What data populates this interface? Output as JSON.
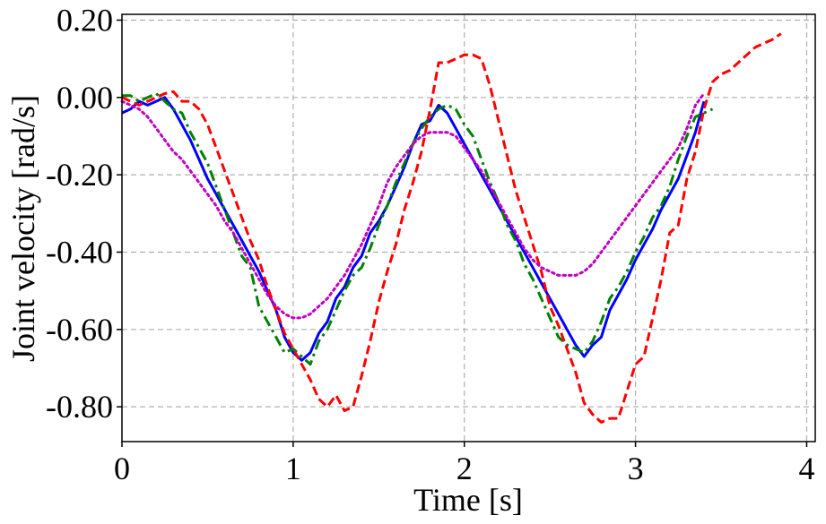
{
  "chart_data": {
    "type": "line",
    "title": "",
    "xlabel": "Time [s]",
    "ylabel": "Joint velocity [rad/s]",
    "xlim": [
      0,
      4.05
    ],
    "ylim": [
      -0.89,
      0.215
    ],
    "xticks": [
      0,
      1,
      2,
      3,
      4
    ],
    "xtick_labels": [
      "0",
      "1",
      "2",
      "3",
      "4"
    ],
    "yticks": [
      0.2,
      0.0,
      -0.2,
      -0.4,
      -0.6,
      -0.8
    ],
    "ytick_labels": [
      "0.20",
      "0.00",
      "-0.20",
      "-0.40",
      "-0.60",
      "-0.80"
    ],
    "grid": true,
    "series": [
      {
        "color": "#0000ff",
        "style": "solid",
        "x": [
          0,
          0.05,
          0.1,
          0.15,
          0.2,
          0.25,
          0.3,
          0.35,
          0.4,
          0.45,
          0.5,
          0.55,
          0.6,
          0.65,
          0.7,
          0.75,
          0.8,
          0.85,
          0.9,
          0.95,
          1.0,
          1.05,
          1.1,
          1.15,
          1.2,
          1.25,
          1.3,
          1.35,
          1.4,
          1.45,
          1.5,
          1.55,
          1.6,
          1.65,
          1.7,
          1.75,
          1.8,
          1.85,
          1.9,
          1.95,
          2.0,
          2.05,
          2.1,
          2.15,
          2.2,
          2.25,
          2.3,
          2.35,
          2.4,
          2.45,
          2.5,
          2.55,
          2.6,
          2.65,
          2.7,
          2.75,
          2.8,
          2.85,
          2.9,
          2.95,
          3.0,
          3.05,
          3.1,
          3.15,
          3.2,
          3.25,
          3.3,
          3.35,
          3.4
        ],
        "y": [
          -0.04,
          -0.03,
          -0.01,
          -0.02,
          -0.01,
          0.0,
          -0.03,
          -0.07,
          -0.11,
          -0.16,
          -0.21,
          -0.25,
          -0.29,
          -0.33,
          -0.37,
          -0.41,
          -0.45,
          -0.5,
          -0.55,
          -0.62,
          -0.66,
          -0.68,
          -0.66,
          -0.61,
          -0.58,
          -0.52,
          -0.49,
          -0.44,
          -0.41,
          -0.35,
          -0.32,
          -0.28,
          -0.23,
          -0.18,
          -0.12,
          -0.07,
          -0.06,
          -0.02,
          -0.04,
          -0.08,
          -0.12,
          -0.16,
          -0.2,
          -0.24,
          -0.28,
          -0.32,
          -0.36,
          -0.4,
          -0.44,
          -0.48,
          -0.52,
          -0.56,
          -0.6,
          -0.64,
          -0.67,
          -0.64,
          -0.62,
          -0.55,
          -0.51,
          -0.47,
          -0.42,
          -0.38,
          -0.34,
          -0.29,
          -0.25,
          -0.21,
          -0.15,
          -0.09,
          -0.01
        ]
      },
      {
        "color": "#008000",
        "style": "dashdot",
        "x": [
          0,
          0.05,
          0.1,
          0.15,
          0.2,
          0.25,
          0.3,
          0.35,
          0.4,
          0.45,
          0.5,
          0.55,
          0.6,
          0.65,
          0.7,
          0.75,
          0.8,
          0.85,
          0.9,
          0.95,
          1.0,
          1.05,
          1.1,
          1.15,
          1.2,
          1.25,
          1.3,
          1.35,
          1.4,
          1.45,
          1.5,
          1.55,
          1.6,
          1.65,
          1.7,
          1.75,
          1.8,
          1.85,
          1.9,
          1.95,
          2.0,
          2.05,
          2.1,
          2.15,
          2.2,
          2.25,
          2.3,
          2.35,
          2.4,
          2.45,
          2.5,
          2.55,
          2.6,
          2.65,
          2.7,
          2.75,
          2.8,
          2.85,
          2.9,
          2.95,
          3.0,
          3.05,
          3.1,
          3.15,
          3.2,
          3.25,
          3.3,
          3.35,
          3.4,
          3.45
        ],
        "y": [
          0.005,
          0.005,
          -0.01,
          0.0,
          0.01,
          -0.01,
          -0.03,
          -0.04,
          -0.09,
          -0.13,
          -0.17,
          -0.23,
          -0.29,
          -0.35,
          -0.41,
          -0.44,
          -0.54,
          -0.58,
          -0.62,
          -0.66,
          -0.65,
          -0.67,
          -0.69,
          -0.63,
          -0.6,
          -0.55,
          -0.5,
          -0.46,
          -0.44,
          -0.39,
          -0.33,
          -0.28,
          -0.22,
          -0.17,
          -0.12,
          -0.08,
          -0.05,
          -0.03,
          -0.02,
          -0.03,
          -0.07,
          -0.1,
          -0.16,
          -0.22,
          -0.27,
          -0.33,
          -0.37,
          -0.43,
          -0.47,
          -0.52,
          -0.57,
          -0.62,
          -0.64,
          -0.65,
          -0.66,
          -0.63,
          -0.58,
          -0.52,
          -0.49,
          -0.45,
          -0.4,
          -0.36,
          -0.31,
          -0.28,
          -0.23,
          -0.16,
          -0.1,
          -0.05,
          -0.04,
          -0.03
        ]
      },
      {
        "color": "#ff0000",
        "style": "dashed",
        "x": [
          0,
          0.05,
          0.1,
          0.15,
          0.2,
          0.25,
          0.3,
          0.35,
          0.4,
          0.45,
          0.5,
          0.55,
          0.6,
          0.65,
          0.7,
          0.75,
          0.8,
          0.85,
          0.9,
          0.95,
          1.0,
          1.05,
          1.1,
          1.15,
          1.2,
          1.25,
          1.3,
          1.35,
          1.4,
          1.45,
          1.5,
          1.55,
          1.6,
          1.65,
          1.7,
          1.75,
          1.8,
          1.85,
          1.9,
          1.95,
          2.0,
          2.05,
          2.1,
          2.15,
          2.2,
          2.25,
          2.3,
          2.35,
          2.4,
          2.45,
          2.5,
          2.55,
          2.6,
          2.65,
          2.7,
          2.75,
          2.8,
          2.85,
          2.9,
          2.95,
          3.0,
          3.05,
          3.1,
          3.15,
          3.2,
          3.25,
          3.3,
          3.35,
          3.4,
          3.45,
          3.5,
          3.55,
          3.6,
          3.65,
          3.7,
          3.75,
          3.8,
          3.85
        ],
        "y": [
          0.0,
          -0.01,
          -0.02,
          -0.01,
          0.0,
          0.01,
          0.015,
          -0.01,
          -0.01,
          -0.03,
          -0.07,
          -0.13,
          -0.19,
          -0.25,
          -0.31,
          -0.37,
          -0.42,
          -0.49,
          -0.55,
          -0.61,
          -0.65,
          -0.69,
          -0.73,
          -0.78,
          -0.8,
          -0.77,
          -0.81,
          -0.8,
          -0.72,
          -0.63,
          -0.53,
          -0.45,
          -0.38,
          -0.29,
          -0.22,
          -0.14,
          -0.03,
          0.09,
          0.09,
          0.1,
          0.11,
          0.11,
          0.1,
          0.03,
          -0.06,
          -0.15,
          -0.24,
          -0.31,
          -0.38,
          -0.45,
          -0.54,
          -0.59,
          -0.65,
          -0.71,
          -0.79,
          -0.82,
          -0.84,
          -0.83,
          -0.83,
          -0.76,
          -0.69,
          -0.67,
          -0.57,
          -0.47,
          -0.35,
          -0.33,
          -0.21,
          -0.14,
          -0.03,
          0.04,
          0.06,
          0.07,
          0.09,
          0.11,
          0.13,
          0.14,
          0.15,
          0.165
        ]
      },
      {
        "color": "#c000c0",
        "style": "dotted",
        "x": [
          0,
          0.05,
          0.1,
          0.15,
          0.2,
          0.25,
          0.3,
          0.35,
          0.4,
          0.45,
          0.5,
          0.55,
          0.6,
          0.65,
          0.7,
          0.75,
          0.8,
          0.85,
          0.9,
          0.95,
          1.0,
          1.05,
          1.1,
          1.15,
          1.2,
          1.25,
          1.3,
          1.35,
          1.4,
          1.45,
          1.5,
          1.55,
          1.6,
          1.65,
          1.7,
          1.75,
          1.8,
          1.85,
          1.9,
          1.95,
          2.0,
          2.05,
          2.1,
          2.15,
          2.2,
          2.25,
          2.3,
          2.35,
          2.4,
          2.45,
          2.5,
          2.55,
          2.6,
          2.65,
          2.7,
          2.75,
          2.8,
          2.85,
          2.9,
          2.95,
          3.0,
          3.05,
          3.1,
          3.15,
          3.2,
          3.25,
          3.3,
          3.35,
          3.4
        ],
        "y": [
          -0.01,
          -0.02,
          -0.03,
          -0.05,
          -0.08,
          -0.11,
          -0.14,
          -0.16,
          -0.19,
          -0.22,
          -0.25,
          -0.28,
          -0.32,
          -0.35,
          -0.39,
          -0.43,
          -0.47,
          -0.51,
          -0.54,
          -0.56,
          -0.57,
          -0.57,
          -0.56,
          -0.54,
          -0.52,
          -0.49,
          -0.46,
          -0.42,
          -0.38,
          -0.33,
          -0.28,
          -0.22,
          -0.18,
          -0.15,
          -0.12,
          -0.1,
          -0.09,
          -0.09,
          -0.09,
          -0.1,
          -0.13,
          -0.16,
          -0.19,
          -0.23,
          -0.27,
          -0.31,
          -0.35,
          -0.39,
          -0.42,
          -0.44,
          -0.45,
          -0.46,
          -0.46,
          -0.46,
          -0.45,
          -0.43,
          -0.4,
          -0.37,
          -0.34,
          -0.31,
          -0.28,
          -0.25,
          -0.22,
          -0.19,
          -0.16,
          -0.13,
          -0.08,
          -0.02,
          0.01
        ]
      }
    ]
  }
}
